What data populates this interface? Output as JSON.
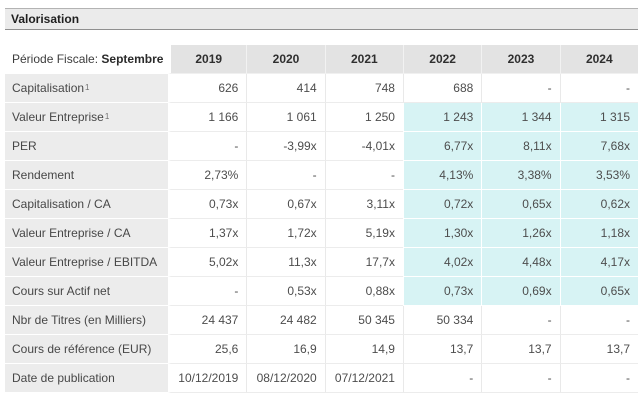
{
  "page": {
    "title": "Valorisation"
  },
  "colors": {
    "highlight_bg": "#d7f3f4",
    "label_column_bg": "#ececec",
    "year_header_bg": "#e3e3e3",
    "titlebar_bg": "#ebebeb",
    "value_text": "#4d4d4d"
  },
  "table": {
    "period_label": "Période Fiscale:",
    "period_value": "Septembre",
    "years": [
      "2019",
      "2020",
      "2021",
      "2022",
      "2023",
      "2024"
    ],
    "rows": [
      {
        "label": "Capitalisation",
        "sup": "1",
        "values": [
          "626",
          "414",
          "748",
          "688",
          "-",
          "-"
        ],
        "highlight": [
          false,
          false,
          false,
          false,
          false,
          false
        ]
      },
      {
        "label": "Valeur Entreprise",
        "sup": "1",
        "values": [
          "1 166",
          "1 061",
          "1 250",
          "1 243",
          "1 344",
          "1 315"
        ],
        "highlight": [
          false,
          false,
          false,
          true,
          true,
          true
        ]
      },
      {
        "label": "PER",
        "sup": "",
        "values": [
          "-",
          "-3,99x",
          "-4,01x",
          "6,77x",
          "8,11x",
          "7,68x"
        ],
        "highlight": [
          false,
          false,
          false,
          true,
          true,
          true
        ]
      },
      {
        "label": "Rendement",
        "sup": "",
        "values": [
          "2,73%",
          "-",
          "-",
          "4,13%",
          "3,38%",
          "3,53%"
        ],
        "highlight": [
          false,
          false,
          false,
          true,
          true,
          true
        ]
      },
      {
        "label": "Capitalisation / CA",
        "sup": "",
        "values": [
          "0,73x",
          "0,67x",
          "3,11x",
          "0,72x",
          "0,65x",
          "0,62x"
        ],
        "highlight": [
          false,
          false,
          false,
          true,
          true,
          true
        ]
      },
      {
        "label": "Valeur Entreprise / CA",
        "sup": "",
        "values": [
          "1,37x",
          "1,72x",
          "5,19x",
          "1,30x",
          "1,26x",
          "1,18x"
        ],
        "highlight": [
          false,
          false,
          false,
          true,
          true,
          true
        ]
      },
      {
        "label": "Valeur Entreprise / EBITDA",
        "sup": "",
        "values": [
          "5,02x",
          "11,3x",
          "17,7x",
          "4,02x",
          "4,48x",
          "4,17x"
        ],
        "highlight": [
          false,
          false,
          false,
          true,
          true,
          true
        ]
      },
      {
        "label": "Cours sur Actif net",
        "sup": "",
        "values": [
          "-",
          "0,53x",
          "0,88x",
          "0,73x",
          "0,69x",
          "0,65x"
        ],
        "highlight": [
          false,
          false,
          false,
          true,
          true,
          true
        ]
      },
      {
        "label": "Nbr de Titres (en Milliers)",
        "sup": "",
        "values": [
          "24 437",
          "24 482",
          "50 345",
          "50 334",
          "-",
          "-"
        ],
        "highlight": [
          false,
          false,
          false,
          false,
          false,
          false
        ]
      },
      {
        "label": "Cours de référence (EUR)",
        "sup": "",
        "values": [
          "25,6",
          "16,9",
          "14,9",
          "13,7",
          "13,7",
          "13,7"
        ],
        "highlight": [
          false,
          false,
          false,
          false,
          false,
          false
        ]
      },
      {
        "label": "Date de publication",
        "sup": "",
        "values": [
          "10/12/2019",
          "08/12/2020",
          "07/12/2021",
          "-",
          "-",
          "-"
        ],
        "highlight": [
          false,
          false,
          false,
          false,
          false,
          false
        ]
      }
    ]
  }
}
